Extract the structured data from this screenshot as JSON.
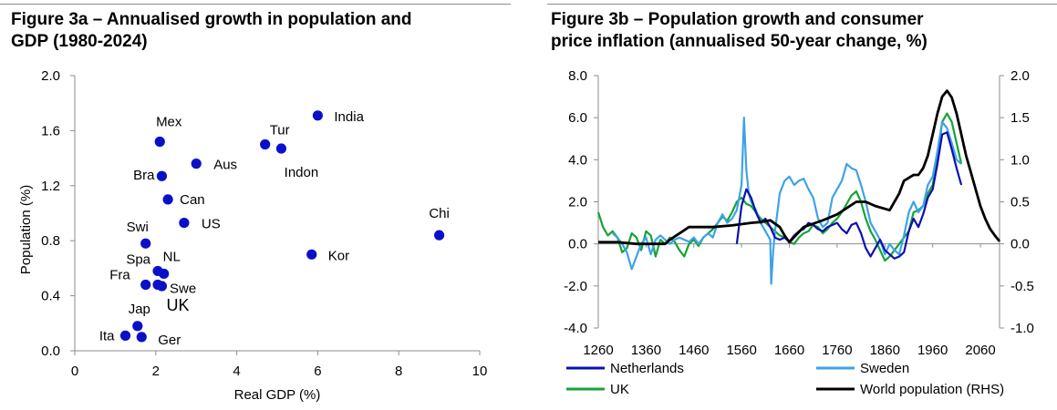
{
  "figure_a": {
    "title_line1": "Figure 3a – Annualised growth in population and",
    "title_line2": "GDP (1980-2024)"
  },
  "figure_b": {
    "title_line1": "Figure 3b – Population growth and consumer",
    "title_line2": "price inflation (annualised 50-year change, %)"
  },
  "chart_data": [
    {
      "type": "scatter",
      "title": "Figure 3a – Annualised growth in population and GDP (1980-2024)",
      "xlabel": "Real GDP (%)",
      "ylabel": "Population (%)",
      "xlim": [
        0,
        10
      ],
      "ylim": [
        0.0,
        2.0
      ],
      "xticks": [
        0,
        2,
        4,
        6,
        8,
        10
      ],
      "yticks": [
        "0.0",
        "0.4",
        "0.8",
        "1.2",
        "1.6",
        "2.0"
      ],
      "grid": false,
      "marker_color": "#0b10c8",
      "points": [
        {
          "label": "India",
          "x": 6.0,
          "y": 1.71
        },
        {
          "label": "Mex",
          "x": 2.1,
          "y": 1.52
        },
        {
          "label": "Tur",
          "x": 4.7,
          "y": 1.5
        },
        {
          "label": "Indon",
          "x": 5.1,
          "y": 1.47
        },
        {
          "label": "Aus",
          "x": 3.0,
          "y": 1.36
        },
        {
          "label": "Bra",
          "x": 2.15,
          "y": 1.27
        },
        {
          "label": "Can",
          "x": 2.3,
          "y": 1.1
        },
        {
          "label": "US",
          "x": 2.7,
          "y": 0.93
        },
        {
          "label": "Chi",
          "x": 9.0,
          "y": 0.84
        },
        {
          "label": "Swi",
          "x": 1.75,
          "y": 0.78
        },
        {
          "label": "Kor",
          "x": 5.85,
          "y": 0.7
        },
        {
          "label": "Spa",
          "x": 2.05,
          "y": 0.58
        },
        {
          "label": "NL",
          "x": 2.2,
          "y": 0.56
        },
        {
          "label": "Swe",
          "x": 2.05,
          "y": 0.48
        },
        {
          "label": "Fra",
          "x": 1.75,
          "y": 0.48
        },
        {
          "label": "UK",
          "x": 2.15,
          "y": 0.47
        },
        {
          "label": "Jap",
          "x": 1.55,
          "y": 0.18
        },
        {
          "label": "Ita",
          "x": 1.25,
          "y": 0.11
        },
        {
          "label": "Ger",
          "x": 1.65,
          "y": 0.1
        }
      ]
    },
    {
      "type": "line",
      "title": "Figure 3b – Population growth and consumer price inflation (annualised 50-year change, %)",
      "xlim": [
        1260,
        2100
      ],
      "xticks": [
        "1260",
        "1360",
        "1460",
        "1560",
        "1660",
        "1760",
        "1860",
        "1960",
        "2060"
      ],
      "ylim_left": [
        -4.0,
        8.0
      ],
      "yticks_left": [
        "-4.0",
        "-2.0",
        "0.0",
        "2.0",
        "4.0",
        "6.0",
        "8.0"
      ],
      "ylim_right": [
        -1.0,
        2.0
      ],
      "yticks_right": [
        "-1.0",
        "-0.5",
        "0.0",
        "0.5",
        "1.0",
        "1.5",
        "2.0"
      ],
      "grid": false,
      "legend_position": "bottom",
      "series": [
        {
          "name": "Netherlands",
          "color": "#0b10b0",
          "axis": "left",
          "x": [
            1550,
            1560,
            1570,
            1580,
            1590,
            1600,
            1610,
            1620,
            1630,
            1640,
            1650,
            1660,
            1670,
            1680,
            1690,
            1700,
            1710,
            1720,
            1730,
            1740,
            1750,
            1760,
            1770,
            1780,
            1790,
            1800,
            1810,
            1820,
            1830,
            1840,
            1850,
            1860,
            1870,
            1880,
            1890,
            1900,
            1910,
            1920,
            1930,
            1940,
            1950,
            1960,
            1970,
            1980,
            1990,
            2000,
            2010,
            2020
          ],
          "y": [
            0.0,
            1.8,
            2.6,
            2.2,
            1.5,
            1.0,
            1.2,
            0.8,
            0.3,
            0.2,
            0.3,
            0.1,
            0.4,
            0.6,
            0.7,
            1.0,
            0.9,
            0.7,
            0.6,
            0.8,
            0.9,
            1.0,
            0.7,
            0.5,
            0.9,
            1.0,
            0.5,
            -0.2,
            -0.6,
            -0.2,
            0.2,
            -0.3,
            -0.5,
            -0.7,
            -0.6,
            -0.4,
            0.6,
            1.2,
            0.8,
            1.4,
            2.2,
            2.6,
            3.8,
            5.2,
            5.3,
            4.5,
            3.6,
            2.8
          ]
        },
        {
          "name": "Sweden",
          "color": "#3ea2e8",
          "axis": "left",
          "x": [
            1290,
            1300,
            1310,
            1320,
            1330,
            1340,
            1350,
            1360,
            1370,
            1380,
            1390,
            1400,
            1410,
            1420,
            1430,
            1440,
            1450,
            1460,
            1470,
            1480,
            1490,
            1500,
            1510,
            1520,
            1530,
            1540,
            1550,
            1560,
            1565,
            1570,
            1575,
            1580,
            1590,
            1600,
            1610,
            1620,
            1622,
            1626,
            1630,
            1640,
            1650,
            1660,
            1670,
            1680,
            1690,
            1700,
            1710,
            1720,
            1730,
            1740,
            1750,
            1760,
            1770,
            1780,
            1790,
            1800,
            1810,
            1820,
            1830,
            1840,
            1850,
            1860,
            1870,
            1880,
            1890,
            1900,
            1910,
            1920,
            1930,
            1940,
            1950,
            1960,
            1970,
            1980,
            1990,
            2000,
            2010,
            2020
          ],
          "y": [
            0.5,
            0.3,
            0.0,
            -0.4,
            -1.2,
            -0.6,
            0.0,
            0.3,
            -0.5,
            0.2,
            0.4,
            0.2,
            0.0,
            0.2,
            0.3,
            0.2,
            0.1,
            0.3,
            0.0,
            0.3,
            0.5,
            0.3,
            1.0,
            1.4,
            1.0,
            1.2,
            1.6,
            2.8,
            6.0,
            3.5,
            2.4,
            2.0,
            1.6,
            1.0,
            0.6,
            0.2,
            -1.9,
            -0.4,
            0.6,
            2.4,
            3.0,
            3.2,
            2.8,
            3.0,
            3.1,
            2.6,
            2.2,
            1.2,
            0.8,
            1.0,
            2.2,
            2.6,
            3.0,
            3.8,
            3.6,
            3.5,
            2.8,
            2.0,
            1.0,
            0.6,
            0.2,
            -0.5,
            0.0,
            -0.3,
            -0.5,
            0.4,
            1.5,
            2.0,
            1.5,
            1.8,
            2.8,
            3.2,
            4.4,
            5.8,
            5.5,
            4.8,
            4.0,
            3.8
          ]
        },
        {
          "name": "UK",
          "color": "#16a335",
          "axis": "left",
          "x": [
            1260,
            1270,
            1280,
            1290,
            1300,
            1310,
            1320,
            1330,
            1340,
            1350,
            1360,
            1370,
            1380,
            1390,
            1400,
            1410,
            1420,
            1430,
            1440,
            1450,
            1460,
            1470,
            1480,
            1490,
            1500,
            1510,
            1520,
            1530,
            1540,
            1550,
            1560,
            1570,
            1580,
            1590,
            1600,
            1610,
            1620,
            1630,
            1640,
            1650,
            1660,
            1670,
            1680,
            1690,
            1700,
            1710,
            1720,
            1730,
            1740,
            1750,
            1760,
            1770,
            1780,
            1790,
            1800,
            1810,
            1820,
            1830,
            1840,
            1850,
            1860,
            1870,
            1880,
            1890,
            1900,
            1910,
            1920,
            1930,
            1940,
            1950,
            1960,
            1970,
            1980,
            1990,
            2000,
            2010,
            2020
          ],
          "y": [
            1.5,
            0.8,
            0.4,
            0.6,
            0.3,
            -0.4,
            -0.2,
            0.5,
            0.3,
            -0.3,
            0.6,
            0.4,
            -0.6,
            0.2,
            0.0,
            0.3,
            0.1,
            -0.3,
            -0.6,
            0.0,
            0.2,
            -0.1,
            0.3,
            0.5,
            0.7,
            1.0,
            1.3,
            1.1,
            1.5,
            2.0,
            2.2,
            1.9,
            1.8,
            1.5,
            1.2,
            1.0,
            0.8,
            0.6,
            0.4,
            0.3,
            0.1,
            0.0,
            0.3,
            0.5,
            0.6,
            0.9,
            0.8,
            0.5,
            0.7,
            1.0,
            1.2,
            1.5,
            1.9,
            2.3,
            2.5,
            2.0,
            1.2,
            0.6,
            0.2,
            -0.3,
            -0.8,
            -0.6,
            -0.3,
            0.0,
            0.3,
            0.6,
            1.5,
            1.6,
            1.8,
            2.4,
            2.8,
            4.0,
            5.8,
            6.2,
            5.8,
            4.8,
            3.8
          ]
        },
        {
          "name": "World population (RHS)",
          "color": "#000000",
          "axis": "right",
          "x": [
            1260,
            1300,
            1340,
            1400,
            1410,
            1450,
            1500,
            1540,
            1580,
            1600,
            1620,
            1640,
            1650,
            1660,
            1690,
            1730,
            1760,
            1800,
            1820,
            1840,
            1870,
            1890,
            1900,
            1920,
            1930,
            1940,
            1950,
            1960,
            1970,
            1980,
            1990,
            2000,
            2010,
            2020,
            2030,
            2040,
            2050,
            2060,
            2070,
            2080,
            2090,
            2100
          ],
          "y": [
            0.02,
            0.02,
            0.0,
            0.0,
            0.05,
            0.2,
            0.2,
            0.22,
            0.25,
            0.26,
            0.28,
            0.2,
            0.1,
            0.02,
            0.2,
            0.28,
            0.35,
            0.5,
            0.5,
            0.45,
            0.4,
            0.6,
            0.75,
            0.82,
            0.82,
            0.9,
            1.05,
            1.3,
            1.55,
            1.75,
            1.82,
            1.74,
            1.55,
            1.3,
            1.05,
            0.85,
            0.65,
            0.45,
            0.3,
            0.18,
            0.1,
            0.03
          ]
        }
      ]
    }
  ]
}
